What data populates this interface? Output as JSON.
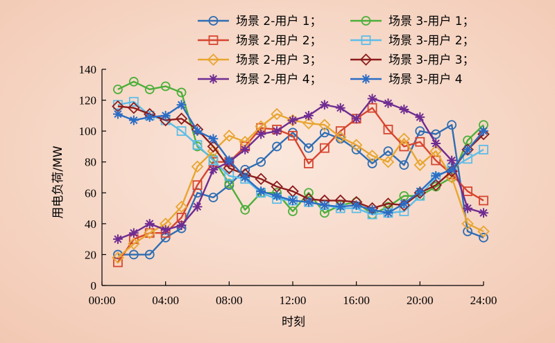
{
  "chart_data": {
    "type": "line",
    "xlabel": "时刻",
    "ylabel": "用电负荷/MW",
    "xlim": [
      0,
      24
    ],
    "ylim": [
      0,
      140
    ],
    "xticks": [
      0,
      4,
      8,
      12,
      16,
      20,
      24
    ],
    "xtick_labels": [
      "00:00",
      "04:00",
      "08:00",
      "12:00",
      "16:00",
      "20:00",
      "24:00"
    ],
    "yticks": [
      0,
      20,
      40,
      60,
      80,
      100,
      120,
      140
    ],
    "grid": false,
    "legend_position": "top-right",
    "background": "#f6d5c3",
    "x": [
      1,
      2,
      3,
      4,
      5,
      6,
      7,
      8,
      9,
      10,
      11,
      12,
      13,
      14,
      15,
      16,
      17,
      18,
      19,
      20,
      21,
      22,
      23,
      24
    ],
    "series": [
      {
        "name": "场景 2-用户 1；",
        "color": "#2e6db4",
        "marker": "circle",
        "values": [
          20,
          20,
          20,
          31,
          37,
          60,
          57,
          65,
          75,
          80,
          90,
          99,
          89,
          99,
          95,
          88,
          79,
          87,
          78,
          100,
          98,
          104,
          35,
          31
        ]
      },
      {
        "name": "场景 3-用户 1；",
        "color": "#4caf3a",
        "marker": "circle",
        "values": [
          127,
          132,
          127,
          129,
          125,
          90,
          82,
          66,
          49,
          60,
          60,
          48,
          60,
          47,
          52,
          54,
          46,
          51,
          58,
          58,
          64,
          70,
          94,
          104
        ]
      },
      {
        "name": "场景 2-用户 2；",
        "color": "#d6452f",
        "marker": "square",
        "values": [
          15,
          30,
          34,
          34,
          44,
          65,
          80,
          80,
          90,
          102,
          101,
          97,
          79,
          89,
          100,
          108,
          115,
          101,
          90,
          93,
          81,
          72,
          61,
          55
        ]
      },
      {
        "name": "场景 3-用户 2；",
        "color": "#5dbde8",
        "marker": "square",
        "values": [
          117,
          119,
          110,
          107,
          100,
          91,
          81,
          71,
          69,
          60,
          56,
          55,
          54,
          52,
          50,
          50,
          46,
          47,
          48,
          58,
          70,
          76,
          82,
          88
        ]
      },
      {
        "name": "场景 2-用户 3；",
        "color": "#e8a530",
        "marker": "diamond",
        "values": [
          18,
          27,
          34,
          40,
          51,
          77,
          87,
          97,
          93,
          103,
          111,
          107,
          105,
          104,
          96,
          91,
          84,
          80,
          95,
          78,
          87,
          70,
          40,
          35
        ]
      },
      {
        "name": "场景 3-用户 3；",
        "color": "#8c1c1c",
        "marker": "diamond",
        "values": [
          116,
          115,
          111,
          107,
          108,
          101,
          90,
          76,
          72,
          69,
          64,
          61,
          56,
          55,
          55,
          54,
          50,
          53,
          52,
          60,
          65,
          74,
          88,
          98
        ]
      },
      {
        "name": "场景 2-用户 4；",
        "color": "#6f2c91",
        "marker": "star",
        "values": [
          30,
          34,
          40,
          36,
          39,
          51,
          75,
          80,
          88,
          98,
          100,
          107,
          110,
          117,
          115,
          108,
          121,
          118,
          114,
          109,
          92,
          81,
          50,
          47
        ]
      },
      {
        "name": "场景 3-用户 4",
        "color": "#2b6cc4",
        "marker": "star",
        "values": [
          111,
          107,
          109,
          110,
          117,
          100,
          95,
          81,
          70,
          61,
          58,
          55,
          54,
          52,
          51,
          52,
          49,
          47,
          53,
          61,
          71,
          75,
          88,
          100
        ]
      }
    ]
  }
}
